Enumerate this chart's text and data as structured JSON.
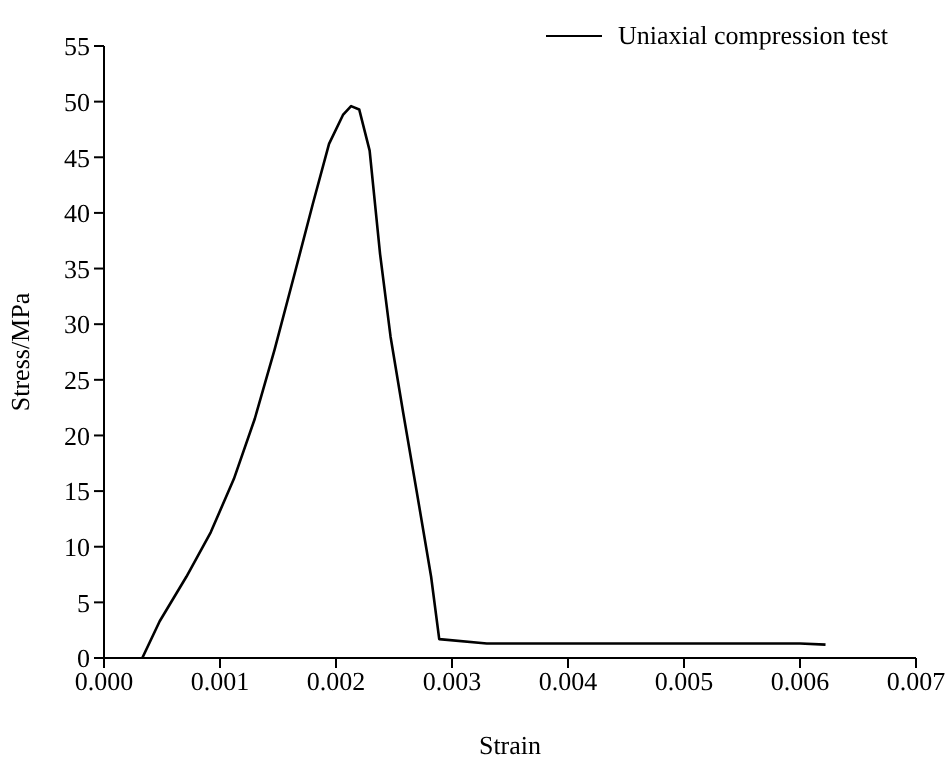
{
  "chart_data": {
    "type": "line",
    "xlabel": "Strain",
    "ylabel": "Stress/MPa",
    "legend": "top right",
    "marker": "none",
    "line_style": "solid",
    "grid": false,
    "xlim": [
      0,
      0.007
    ],
    "xticks": [
      {
        "value": 0,
        "label": "0.000"
      },
      {
        "value": 0.001,
        "label": "0.001"
      },
      {
        "value": 0.002,
        "label": "0.002"
      },
      {
        "value": 0.003,
        "label": "0.003"
      },
      {
        "value": 0.004,
        "label": "0.004"
      },
      {
        "value": 0.005,
        "label": "0.005"
      },
      {
        "value": 0.006,
        "label": "0.006"
      },
      {
        "value": 0.007,
        "label": "0.007"
      }
    ],
    "ylim": [
      0,
      55
    ],
    "yticks": [
      0,
      5,
      10,
      15,
      20,
      25,
      30,
      35,
      40,
      45,
      50,
      55
    ],
    "series": [
      {
        "name": "Uniaxial compression test",
        "color": "#000000",
        "x": [
          0.00033,
          0.00048,
          0.00071,
          0.00092,
          0.00112,
          0.0013,
          0.00147,
          0.00165,
          0.0018,
          0.00194,
          0.00206,
          0.00213,
          0.0022,
          0.00229,
          0.00238,
          0.00247,
          0.00258,
          0.0027,
          0.00282,
          0.00289,
          0.0033,
          0.0045,
          0.0055,
          0.006,
          0.00622
        ],
        "values": [
          0,
          3.3,
          7.3,
          11.3,
          16.1,
          21.5,
          27.7,
          34.8,
          40.8,
          46.2,
          48.8,
          49.6,
          49.3,
          45.6,
          36.3,
          28.9,
          22,
          14.7,
          7.3,
          1.7,
          1.3,
          1.3,
          1.3,
          1.3,
          1.2
        ]
      }
    ]
  }
}
